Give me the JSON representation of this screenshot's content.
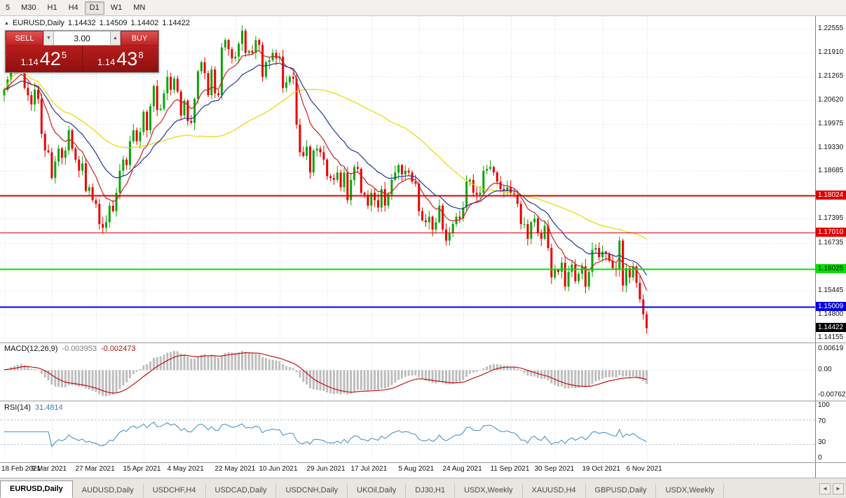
{
  "toolbar": {
    "timeframes": [
      {
        "label": "5",
        "active": false
      },
      {
        "label": "M30",
        "active": false
      },
      {
        "label": "H1",
        "active": false
      },
      {
        "label": "H4",
        "active": false
      },
      {
        "label": "D1",
        "active": true
      },
      {
        "label": "W1",
        "active": false
      },
      {
        "label": "MN",
        "active": false
      }
    ]
  },
  "chart_header": {
    "symbol": "EURUSD,Daily",
    "open": "1.14432",
    "high": "1.14509",
    "low": "1.14402",
    "close": "1.14422"
  },
  "trade_panel": {
    "sell_label": "SELL",
    "buy_label": "BUY",
    "volume": "3.00",
    "sell_price": {
      "prefix": "1.14",
      "big": "42",
      "sup": "5"
    },
    "buy_price": {
      "prefix": "1.14",
      "big": "43",
      "sup": "8"
    }
  },
  "price_axis": {
    "labels": [
      "1.22555",
      "1.21910",
      "1.21265",
      "1.20620",
      "1.19975",
      "1.19330",
      "1.18685",
      "1.17395",
      "1.16735",
      "1.15445",
      "1.14800",
      "1.14155"
    ],
    "badges": [
      {
        "text": "1.18024",
        "value": 1.18024,
        "bg": "#e00000",
        "fg": "#ffffff"
      },
      {
        "text": "1.17010",
        "value": 1.1701,
        "bg": "#e00000",
        "fg": "#ffffff"
      },
      {
        "text": "1.16025",
        "value": 1.16025,
        "bg": "#00e000",
        "fg": "#000000"
      },
      {
        "text": "1.15009",
        "value": 1.15009,
        "bg": "#0000e0",
        "fg": "#ffffff"
      },
      {
        "text": "1.14422",
        "value": 1.14422,
        "bg": "#000000",
        "fg": "#ffffff"
      }
    ]
  },
  "macd_panel": {
    "name": "MACD(12,26,9)",
    "value_main": "-0.003953",
    "value_signal": "-0.002473",
    "axis_labels": [
      {
        "text": "0.00619",
        "value": 0.00619
      },
      {
        "text": "0.00",
        "value": 0
      },
      {
        "text": "-0.00762",
        "value": -0.00762
      }
    ]
  },
  "rsi_panel": {
    "name": "RSI(14)",
    "value": "31.4814",
    "axis_labels": [
      {
        "text": "100",
        "value": 100
      },
      {
        "text": "70",
        "value": 70
      },
      {
        "text": "30",
        "value": 30
      },
      {
        "text": "0",
        "value": 0
      }
    ]
  },
  "date_axis": [
    "18 Feb 2021",
    "9 Mar 2021",
    "27 Mar 2021",
    "15 Apr 2021",
    "4 May 2021",
    "22 May 2021",
    "10 Jun 2021",
    "29 Jun 2021",
    "17 Jul 2021",
    "5 Aug 2021",
    "24 Aug 2021",
    "11 Sep 2021",
    "30 Sep 2021",
    "19 Oct 2021",
    "6 Nov 2021"
  ],
  "tabs": {
    "items": [
      {
        "label": "EURUSD,Daily",
        "active": true
      },
      {
        "label": "AUDUSD,Daily",
        "active": false
      },
      {
        "label": "USDCHF,H4",
        "active": false
      },
      {
        "label": "USDCAD,Daily",
        "active": false
      },
      {
        "label": "USDCNH,Daily",
        "active": false
      },
      {
        "label": "UKOil,Daily",
        "active": false
      },
      {
        "label": "DJ30,H1",
        "active": false
      },
      {
        "label": "USDX,Weekly",
        "active": false
      },
      {
        "label": "XAUUSD,H4",
        "active": false
      },
      {
        "label": "GBPUSD,Daily",
        "active": false
      },
      {
        "label": "USDX,Weekly",
        "active": false
      }
    ]
  },
  "chart_data": {
    "type": "candlestick",
    "symbol": "EURUSD",
    "timeframe": "Daily",
    "ohlc_current": {
      "open": 1.14432,
      "high": 1.14509,
      "low": 1.14402,
      "close": 1.14422
    },
    "price_range": [
      1.1405,
      1.229
    ],
    "x_range_dates": [
      "18 Feb 2021",
      "10 Nov 2021"
    ],
    "up_color": "#0aa50a",
    "down_color": "#e80000",
    "closes": [
      1.209,
      1.2118,
      1.216,
      1.215,
      1.2165,
      1.217,
      1.2095,
      1.2075,
      1.205,
      1.209,
      1.2065,
      1.197,
      1.1925,
      1.192,
      1.185,
      1.1895,
      1.193,
      1.1905,
      1.1925,
      1.198,
      1.193,
      1.19,
      1.187,
      1.189,
      1.1815,
      1.1825,
      1.179,
      1.178,
      1.1725,
      1.1715,
      1.173,
      1.1775,
      1.176,
      1.181,
      1.187,
      1.19,
      1.1885,
      1.195,
      1.198,
      1.195,
      1.1975,
      1.203,
      1.198,
      1.2045,
      1.21,
      1.2035,
      1.2038,
      1.208,
      1.2125,
      1.209,
      1.212,
      1.2085,
      1.202,
      1.206,
      1.2005,
      1.2,
      1.2065,
      1.214,
      1.2165,
      1.2135,
      1.2075,
      1.2145,
      1.208,
      1.2075,
      1.2205,
      1.2225,
      1.22,
      1.2175,
      1.218,
      1.2215,
      1.225,
      1.219,
      1.2195,
      1.219,
      1.2225,
      1.2212,
      1.2125,
      1.2165,
      1.217,
      1.219,
      1.2175,
      1.218,
      1.2095,
      1.211,
      1.2125,
      1.212,
      1.1995,
      1.192,
      1.191,
      1.1935,
      1.1865,
      1.1925,
      1.193,
      1.192,
      1.19,
      1.1855,
      1.185,
      1.1845,
      1.1865,
      1.1825,
      1.1865,
      1.179,
      1.1845,
      1.188,
      1.1875,
      1.181,
      1.1805,
      1.1775,
      1.181,
      1.179,
      1.177,
      1.182,
      1.1775,
      1.1805,
      1.1845,
      1.1865,
      1.1885,
      1.186,
      1.187,
      1.1865,
      1.184,
      1.1835,
      1.176,
      1.1735,
      1.173,
      1.1745,
      1.171,
      1.173,
      1.1775,
      1.171,
      1.168,
      1.17,
      1.1725,
      1.1745,
      1.174,
      1.177,
      1.184,
      1.1845,
      1.181,
      1.1805,
      1.181,
      1.187,
      1.1875,
      1.188,
      1.1865,
      1.184,
      1.182,
      1.1815,
      1.1825,
      1.181,
      1.1805,
      1.178,
      1.1725,
      1.1725,
      1.1685,
      1.173,
      1.174,
      1.17,
      1.1685,
      1.172,
      1.166,
      1.158,
      1.16,
      1.1595,
      1.162,
      1.1555,
      1.1595,
      1.1615,
      1.157,
      1.159,
      1.161,
      1.1555,
      1.1595,
      1.1655,
      1.166,
      1.1635,
      1.165,
      1.1645,
      1.1625,
      1.1605,
      1.16,
      1.168,
      1.1558,
      1.1605,
      1.158,
      1.161,
      1.1565,
      1.152,
      1.148,
      1.14422
    ],
    "moving_averages": [
      {
        "type": "ema",
        "period": 10,
        "color": "#cc2222"
      },
      {
        "type": "ema",
        "period": 22,
        "color": "#283593"
      },
      {
        "type": "sma",
        "period": 55,
        "color": "#e8d800"
      }
    ],
    "levels": [
      {
        "price": 1.18024,
        "color": "#e00000",
        "width": 2
      },
      {
        "price": 1.1701,
        "color": "#e00000",
        "width": 1
      },
      {
        "price": 1.16025,
        "color": "#00e000",
        "width": 2
      },
      {
        "price": 1.15009,
        "color": "#0000f0",
        "width": 2
      }
    ],
    "current_price": 1.14422,
    "indicators": {
      "macd": {
        "fast": 12,
        "slow": 26,
        "signal": 9,
        "main": -0.003953,
        "signal_value": -0.002473,
        "histogram_color": "#bdbdbd",
        "signal_color": "#c00000",
        "range": [
          -0.009,
          0.0078
        ]
      },
      "rsi": {
        "period": 14,
        "value": 31.4814,
        "color": "#4a96c8",
        "levels": [
          70,
          30
        ],
        "range": [
          0,
          100
        ]
      }
    }
  }
}
